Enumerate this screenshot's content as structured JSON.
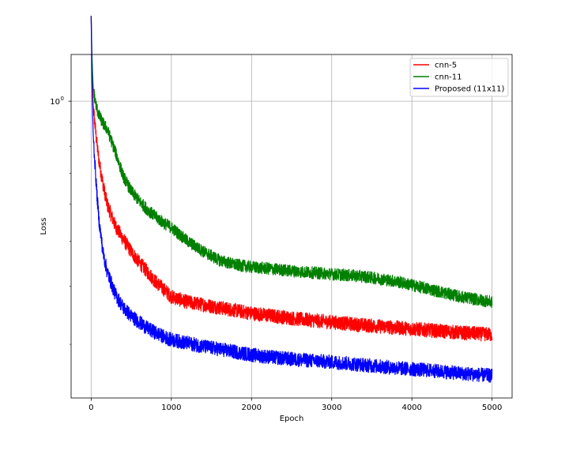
{
  "chart_data": {
    "type": "line",
    "title": "",
    "xlabel": "Epoch",
    "ylabel": "Loss",
    "xlim": [
      -250,
      5250
    ],
    "ylim": [
      0.23,
      1.26
    ],
    "yscale": "log",
    "grid": true,
    "legend_position": "top-right",
    "x_ticks": [
      {
        "value": 0,
        "label": "0"
      },
      {
        "value": 1000,
        "label": "1000"
      },
      {
        "value": 2000,
        "label": "2000"
      },
      {
        "value": 3000,
        "label": "3000"
      },
      {
        "value": 4000,
        "label": "4000"
      },
      {
        "value": 5000,
        "label": "5000"
      }
    ],
    "y_major_ticks": [
      {
        "value": 1.0,
        "label": "10",
        "exponent": "0"
      }
    ],
    "y_minor_ticks": [
      0.3,
      0.4,
      0.5,
      0.6,
      0.7,
      0.8,
      0.9
    ],
    "x": [
      0,
      10,
      25,
      50,
      75,
      100,
      150,
      200,
      300,
      400,
      500,
      600,
      700,
      800,
      900,
      1000,
      1200,
      1400,
      1600,
      1800,
      2000,
      2300,
      2600,
      3000,
      3400,
      3800,
      4200,
      4600,
      5000
    ],
    "series": [
      {
        "name": "cnn-5",
        "color": "#ff0000",
        "noise": 0.035,
        "values": [
          1.52,
          1.2,
          0.98,
          0.88,
          0.8,
          0.74,
          0.66,
          0.6,
          0.54,
          0.505,
          0.475,
          0.45,
          0.43,
          0.41,
          0.395,
          0.38,
          0.37,
          0.365,
          0.36,
          0.355,
          0.35,
          0.345,
          0.34,
          0.335,
          0.33,
          0.326,
          0.322,
          0.318,
          0.315
        ]
      },
      {
        "name": "cnn-11",
        "color": "#008000",
        "noise": 0.03,
        "values": [
          1.52,
          1.25,
          1.07,
          1.0,
          0.96,
          0.93,
          0.895,
          0.87,
          0.78,
          0.69,
          0.64,
          0.61,
          0.585,
          0.565,
          0.548,
          0.535,
          0.5,
          0.475,
          0.455,
          0.445,
          0.44,
          0.435,
          0.43,
          0.425,
          0.42,
          0.41,
          0.395,
          0.38,
          0.37
        ]
      },
      {
        "name": "Proposed (11x11)",
        "color": "#0000ff",
        "noise": 0.035,
        "values": [
          1.52,
          1.1,
          0.85,
          0.72,
          0.62,
          0.55,
          0.47,
          0.43,
          0.385,
          0.36,
          0.345,
          0.335,
          0.325,
          0.318,
          0.312,
          0.307,
          0.302,
          0.297,
          0.293,
          0.289,
          0.285,
          0.281,
          0.278,
          0.275,
          0.271,
          0.267,
          0.264,
          0.26,
          0.257
        ]
      }
    ]
  }
}
